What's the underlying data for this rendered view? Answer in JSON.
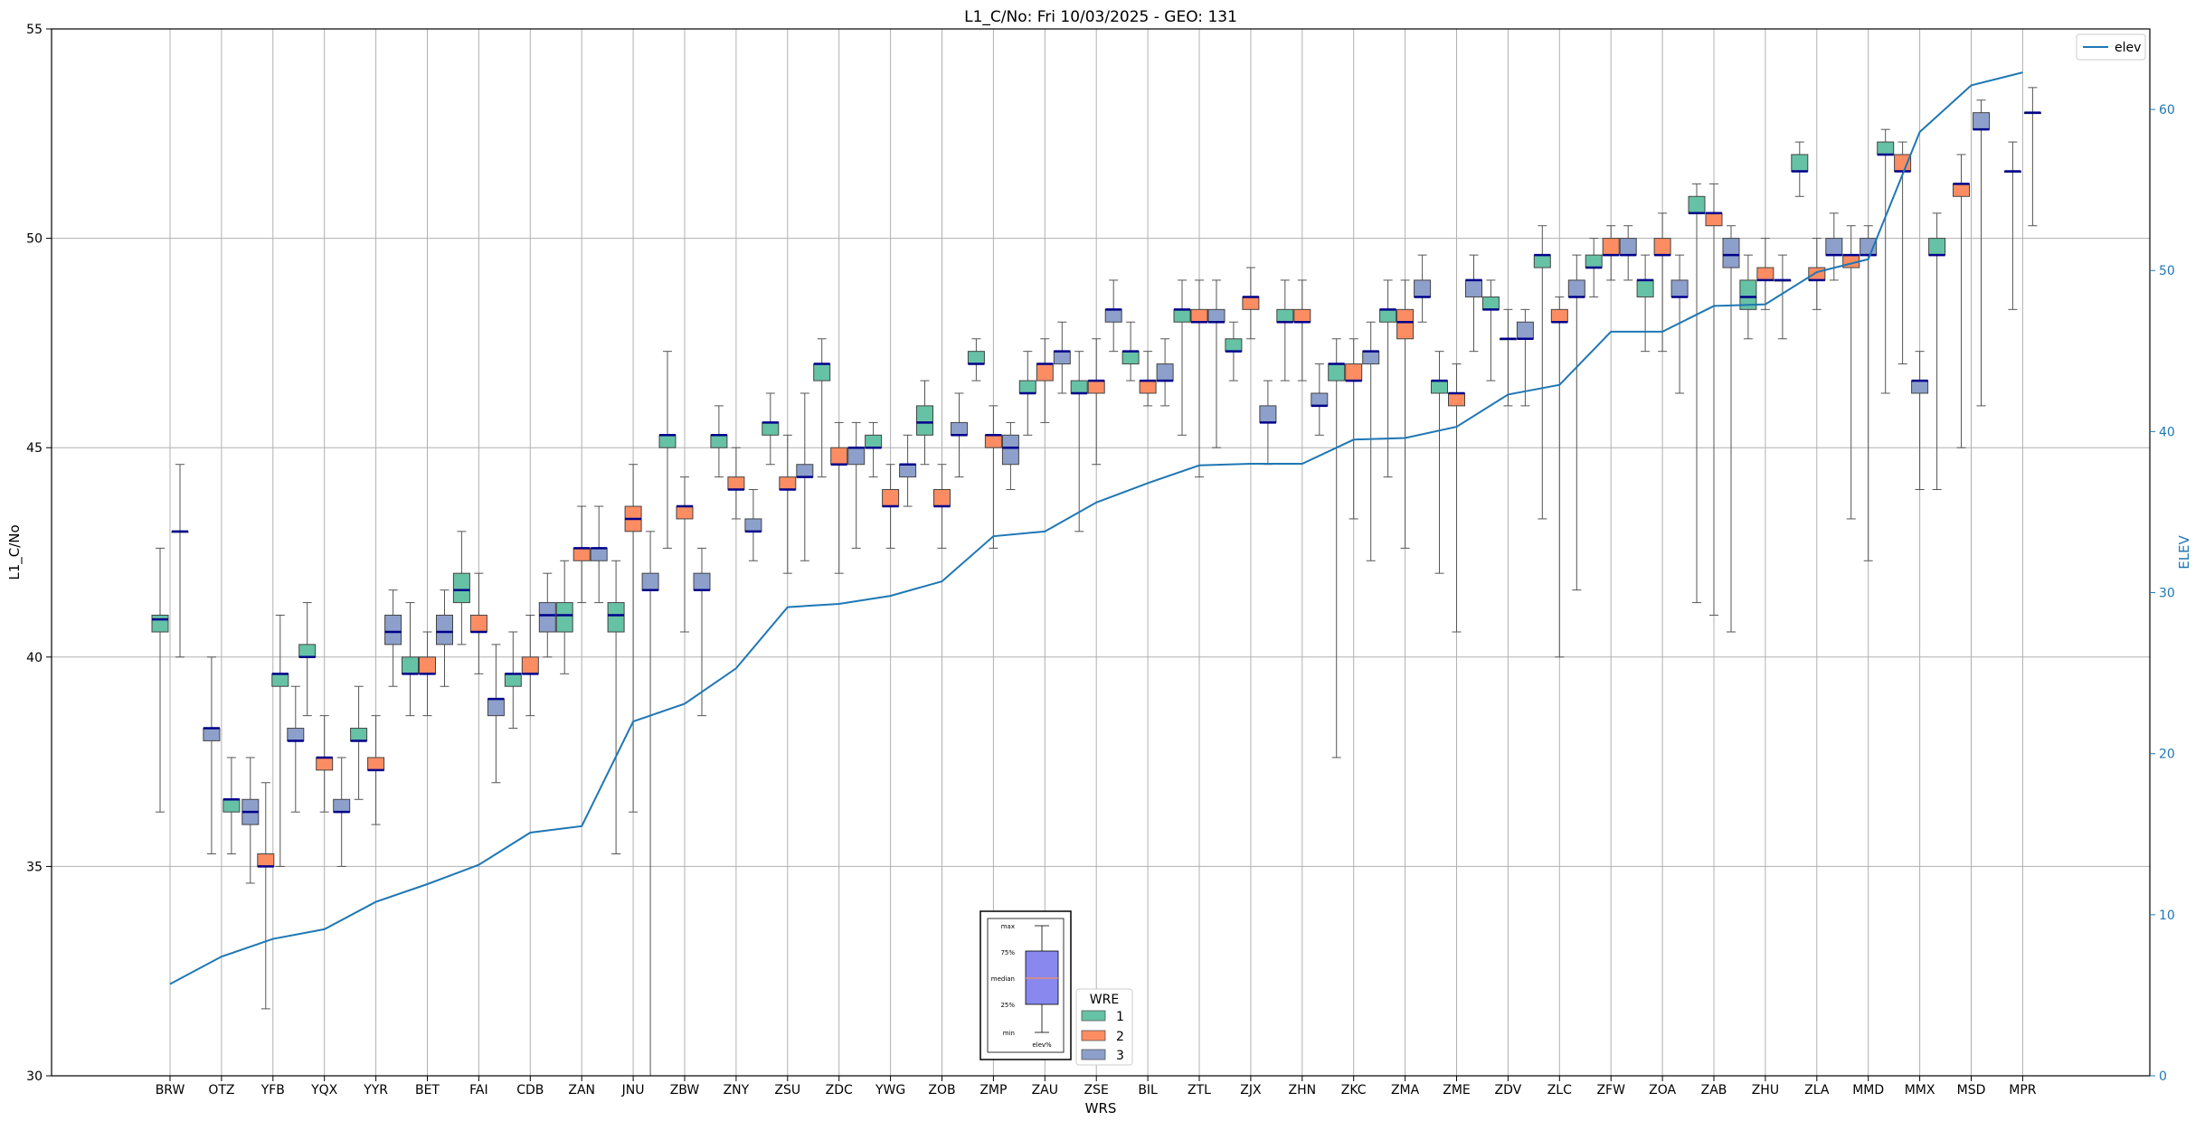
{
  "chart_data": {
    "type": "boxplot",
    "title": "L1_C/No: Fri 10/03/2025 - GEO: 131",
    "xlabel": "WRS",
    "ylabel": "L1_C/No",
    "y2label": "ELEV",
    "ylim": [
      30,
      55
    ],
    "y2lim": [
      0,
      65
    ],
    "yticks": [
      30,
      35,
      40,
      45,
      50,
      55
    ],
    "y2ticks": [
      0,
      10,
      20,
      30,
      40,
      50,
      60
    ],
    "grid": true,
    "categories": [
      "BRW",
      "OTZ",
      "YFB",
      "YQX",
      "YYR",
      "BET",
      "FAI",
      "CDB",
      "ZAN",
      "JNU",
      "ZBW",
      "ZNY",
      "ZSU",
      "ZDC",
      "YWG",
      "ZOB",
      "ZMP",
      "ZAU",
      "ZSE",
      "BIL",
      "ZTL",
      "ZJX",
      "ZHN",
      "ZKC",
      "ZMA",
      "ZME",
      "ZDV",
      "ZLC",
      "ZFW",
      "ZOA",
      "ZAB",
      "ZHU",
      "ZLA",
      "MMD",
      "MMX",
      "MSD",
      "MPR"
    ],
    "wre_colors": {
      "1": "#66c2a5",
      "2": "#fc8d62",
      "3": "#8da0cb"
    },
    "median_color": "#00008b",
    "elev_color": "#1f77b4",
    "boxes": [
      {
        "station": "BRW",
        "wre": 1,
        "min": 36.3,
        "q1": 40.6,
        "median": 40.9,
        "q3": 41.0,
        "max": 42.6
      },
      {
        "station": "BRW",
        "wre": 3,
        "min": 40.0,
        "q1": 43.0,
        "median": 43.0,
        "q3": 43.0,
        "max": 44.6
      },
      {
        "station": "OTZ",
        "wre": 3,
        "min": 35.3,
        "q1": 38.0,
        "median": 38.3,
        "q3": 38.3,
        "max": 40.0
      },
      {
        "station": "OTZ",
        "wre": 1,
        "min": 35.3,
        "q1": 36.3,
        "median": 36.6,
        "q3": 36.6,
        "max": 37.6
      },
      {
        "station": "YFB",
        "wre": 3,
        "min": 34.6,
        "q1": 36.0,
        "median": 36.3,
        "q3": 36.6,
        "max": 37.6
      },
      {
        "station": "YFB",
        "wre": 2,
        "min": 31.6,
        "q1": 35.0,
        "median": 35.0,
        "q3": 35.3,
        "max": 37.0
      },
      {
        "station": "YFB",
        "wre": 1,
        "min": 35.0,
        "q1": 39.3,
        "median": 39.6,
        "q3": 39.6,
        "max": 41.0
      },
      {
        "station": "YFB",
        "wre": 3,
        "min": 36.3,
        "q1": 38.0,
        "median": 38.0,
        "q3": 38.3,
        "max": 39.3
      },
      {
        "station": "YQX",
        "wre": 1,
        "min": 38.6,
        "q1": 40.0,
        "median": 40.0,
        "q3": 40.3,
        "max": 41.3
      },
      {
        "station": "YQX",
        "wre": 2,
        "min": 36.3,
        "q1": 37.3,
        "median": 37.6,
        "q3": 37.6,
        "max": 38.6
      },
      {
        "station": "YQX",
        "wre": 3,
        "min": 35.0,
        "q1": 36.3,
        "median": 36.3,
        "q3": 36.6,
        "max": 37.6
      },
      {
        "station": "YYR",
        "wre": 1,
        "min": 36.6,
        "q1": 38.0,
        "median": 38.0,
        "q3": 38.3,
        "max": 39.3
      },
      {
        "station": "YYR",
        "wre": 2,
        "min": 36.0,
        "q1": 37.3,
        "median": 37.3,
        "q3": 37.6,
        "max": 38.6
      },
      {
        "station": "YYR",
        "wre": 3,
        "min": 39.3,
        "q1": 40.3,
        "median": 40.6,
        "q3": 41.0,
        "max": 41.6
      },
      {
        "station": "BET",
        "wre": 1,
        "min": 38.6,
        "q1": 39.6,
        "median": 39.6,
        "q3": 40.0,
        "max": 41.3
      },
      {
        "station": "BET",
        "wre": 2,
        "min": 38.6,
        "q1": 39.6,
        "median": 39.6,
        "q3": 40.0,
        "max": 40.6
      },
      {
        "station": "BET",
        "wre": 3,
        "min": 39.3,
        "q1": 40.3,
        "median": 40.6,
        "q3": 41.0,
        "max": 41.6
      },
      {
        "station": "FAI",
        "wre": 1,
        "min": 40.3,
        "q1": 41.3,
        "median": 41.6,
        "q3": 42.0,
        "max": 43.0
      },
      {
        "station": "FAI",
        "wre": 2,
        "min": 39.6,
        "q1": 40.6,
        "median": 40.6,
        "q3": 41.0,
        "max": 42.0
      },
      {
        "station": "FAI",
        "wre": 3,
        "min": 37.0,
        "q1": 38.6,
        "median": 39.0,
        "q3": 39.0,
        "max": 40.3
      },
      {
        "station": "CDB",
        "wre": 1,
        "min": 38.3,
        "q1": 39.3,
        "median": 39.6,
        "q3": 39.6,
        "max": 40.6
      },
      {
        "station": "CDB",
        "wre": 2,
        "min": 38.6,
        "q1": 39.6,
        "median": 39.6,
        "q3": 40.0,
        "max": 41.0
      },
      {
        "station": "CDB",
        "wre": 3,
        "min": 40.0,
        "q1": 40.6,
        "median": 41.0,
        "q3": 41.3,
        "max": 42.0
      },
      {
        "station": "ZAN",
        "wre": 1,
        "min": 39.6,
        "q1": 40.6,
        "median": 41.0,
        "q3": 41.3,
        "max": 42.3
      },
      {
        "station": "ZAN",
        "wre": 2,
        "min": 41.3,
        "q1": 42.3,
        "median": 42.6,
        "q3": 42.6,
        "max": 43.6
      },
      {
        "station": "ZAN",
        "wre": 3,
        "min": 41.3,
        "q1": 42.3,
        "median": 42.6,
        "q3": 42.6,
        "max": 43.6
      },
      {
        "station": "JNU",
        "wre": 1,
        "min": 35.3,
        "q1": 40.6,
        "median": 41.0,
        "q3": 41.3,
        "max": 42.3
      },
      {
        "station": "JNU",
        "wre": 2,
        "min": 36.3,
        "q1": 43.0,
        "median": 43.3,
        "q3": 43.6,
        "max": 44.6
      },
      {
        "station": "JNU",
        "wre": 3,
        "min": 30.0,
        "q1": 41.6,
        "median": 41.6,
        "q3": 42.0,
        "max": 43.0
      },
      {
        "station": "ZBW",
        "wre": 1,
        "min": 42.6,
        "q1": 45.0,
        "median": 45.3,
        "q3": 45.3,
        "max": 47.3
      },
      {
        "station": "ZBW",
        "wre": 2,
        "min": 40.6,
        "q1": 43.3,
        "median": 43.6,
        "q3": 43.6,
        "max": 44.3
      },
      {
        "station": "ZBW",
        "wre": 3,
        "min": 38.6,
        "q1": 41.6,
        "median": 41.6,
        "q3": 42.0,
        "max": 42.6
      },
      {
        "station": "ZNY",
        "wre": 1,
        "min": 44.3,
        "q1": 45.0,
        "median": 45.3,
        "q3": 45.3,
        "max": 46.0
      },
      {
        "station": "ZNY",
        "wre": 2,
        "min": 43.3,
        "q1": 44.0,
        "median": 44.0,
        "q3": 44.3,
        "max": 45.0
      },
      {
        "station": "ZNY",
        "wre": 3,
        "min": 42.3,
        "q1": 43.0,
        "median": 43.0,
        "q3": 43.3,
        "max": 44.0
      },
      {
        "station": "ZSU",
        "wre": 1,
        "min": 44.6,
        "q1": 45.3,
        "median": 45.6,
        "q3": 45.6,
        "max": 46.3
      },
      {
        "station": "ZSU",
        "wre": 2,
        "min": 42.0,
        "q1": 44.0,
        "median": 44.0,
        "q3": 44.3,
        "max": 45.3
      },
      {
        "station": "ZSU",
        "wre": 3,
        "min": 42.3,
        "q1": 44.3,
        "median": 44.3,
        "q3": 44.6,
        "max": 46.3
      },
      {
        "station": "ZDC",
        "wre": 1,
        "min": 44.3,
        "q1": 46.6,
        "median": 47.0,
        "q3": 47.0,
        "max": 47.6
      },
      {
        "station": "ZDC",
        "wre": 2,
        "min": 42.0,
        "q1": 44.6,
        "median": 44.6,
        "q3": 45.0,
        "max": 45.6
      },
      {
        "station": "ZDC",
        "wre": 3,
        "min": 42.6,
        "q1": 44.6,
        "median": 45.0,
        "q3": 45.0,
        "max": 45.6
      },
      {
        "station": "YWG",
        "wre": 1,
        "min": 44.3,
        "q1": 45.0,
        "median": 45.0,
        "q3": 45.3,
        "max": 45.6
      },
      {
        "station": "YWG",
        "wre": 2,
        "min": 42.6,
        "q1": 43.6,
        "median": 43.6,
        "q3": 44.0,
        "max": 44.6
      },
      {
        "station": "YWG",
        "wre": 3,
        "min": 43.6,
        "q1": 44.3,
        "median": 44.6,
        "q3": 44.6,
        "max": 45.3
      },
      {
        "station": "ZOB",
        "wre": 1,
        "min": 44.6,
        "q1": 45.3,
        "median": 45.6,
        "q3": 46.0,
        "max": 46.6
      },
      {
        "station": "ZOB",
        "wre": 2,
        "min": 42.6,
        "q1": 43.6,
        "median": 43.6,
        "q3": 44.0,
        "max": 44.6
      },
      {
        "station": "ZOB",
        "wre": 3,
        "min": 44.3,
        "q1": 45.3,
        "median": 45.3,
        "q3": 45.6,
        "max": 46.3
      },
      {
        "station": "ZMP",
        "wre": 1,
        "min": 46.6,
        "q1": 47.0,
        "median": 47.0,
        "q3": 47.3,
        "max": 47.6
      },
      {
        "station": "ZMP",
        "wre": 2,
        "min": 42.6,
        "q1": 45.0,
        "median": 45.3,
        "q3": 45.3,
        "max": 46.0
      },
      {
        "station": "ZMP",
        "wre": 3,
        "min": 44.0,
        "q1": 44.6,
        "median": 45.0,
        "q3": 45.3,
        "max": 45.6
      },
      {
        "station": "ZAU",
        "wre": 1,
        "min": 45.3,
        "q1": 46.3,
        "median": 46.3,
        "q3": 46.6,
        "max": 47.3
      },
      {
        "station": "ZAU",
        "wre": 2,
        "min": 45.6,
        "q1": 46.6,
        "median": 47.0,
        "q3": 47.0,
        "max": 47.6
      },
      {
        "station": "ZAU",
        "wre": 3,
        "min": 46.3,
        "q1": 47.0,
        "median": 47.3,
        "q3": 47.3,
        "max": 48.0
      },
      {
        "station": "ZSE",
        "wre": 1,
        "min": 43.0,
        "q1": 46.3,
        "median": 46.3,
        "q3": 46.6,
        "max": 47.3
      },
      {
        "station": "ZSE",
        "wre": 2,
        "min": 44.6,
        "q1": 46.3,
        "median": 46.6,
        "q3": 46.6,
        "max": 47.6
      },
      {
        "station": "ZSE",
        "wre": 3,
        "min": 47.3,
        "q1": 48.0,
        "median": 48.3,
        "q3": 48.3,
        "max": 49.0
      },
      {
        "station": "BIL",
        "wre": 1,
        "min": 46.6,
        "q1": 47.0,
        "median": 47.3,
        "q3": 47.3,
        "max": 48.0
      },
      {
        "station": "BIL",
        "wre": 2,
        "min": 46.0,
        "q1": 46.3,
        "median": 46.6,
        "q3": 46.6,
        "max": 47.3
      },
      {
        "station": "BIL",
        "wre": 3,
        "min": 46.0,
        "q1": 46.6,
        "median": 46.6,
        "q3": 47.0,
        "max": 47.6
      },
      {
        "station": "ZTL",
        "wre": 1,
        "min": 45.3,
        "q1": 48.0,
        "median": 48.3,
        "q3": 48.3,
        "max": 49.0
      },
      {
        "station": "ZTL",
        "wre": 2,
        "min": 44.3,
        "q1": 48.0,
        "median": 48.0,
        "q3": 48.3,
        "max": 49.0
      },
      {
        "station": "ZTL",
        "wre": 3,
        "min": 45.0,
        "q1": 48.0,
        "median": 48.0,
        "q3": 48.3,
        "max": 49.0
      },
      {
        "station": "ZJX",
        "wre": 1,
        "min": 46.6,
        "q1": 47.3,
        "median": 47.3,
        "q3": 47.6,
        "max": 48.0
      },
      {
        "station": "ZJX",
        "wre": 2,
        "min": 47.6,
        "q1": 48.3,
        "median": 48.6,
        "q3": 48.6,
        "max": 49.3
      },
      {
        "station": "ZJX",
        "wre": 3,
        "min": 44.6,
        "q1": 45.6,
        "median": 45.6,
        "q3": 46.0,
        "max": 46.6
      },
      {
        "station": "ZHN",
        "wre": 1,
        "min": 46.6,
        "q1": 48.0,
        "median": 48.0,
        "q3": 48.3,
        "max": 49.0
      },
      {
        "station": "ZHN",
        "wre": 2,
        "min": 46.6,
        "q1": 48.0,
        "median": 48.0,
        "q3": 48.3,
        "max": 49.0
      },
      {
        "station": "ZHN",
        "wre": 3,
        "min": 45.3,
        "q1": 46.0,
        "median": 46.0,
        "q3": 46.3,
        "max": 47.0
      },
      {
        "station": "ZKC",
        "wre": 1,
        "min": 37.6,
        "q1": 46.6,
        "median": 47.0,
        "q3": 47.0,
        "max": 47.6
      },
      {
        "station": "ZKC",
        "wre": 2,
        "min": 43.3,
        "q1": 46.6,
        "median": 46.6,
        "q3": 47.0,
        "max": 47.6
      },
      {
        "station": "ZKC",
        "wre": 3,
        "min": 42.3,
        "q1": 47.0,
        "median": 47.3,
        "q3": 47.3,
        "max": 48.0
      },
      {
        "station": "ZMA",
        "wre": 1,
        "min": 44.3,
        "q1": 48.0,
        "median": 48.3,
        "q3": 48.3,
        "max": 49.0
      },
      {
        "station": "ZMA",
        "wre": 2,
        "min": 42.6,
        "q1": 47.6,
        "median": 48.0,
        "q3": 48.3,
        "max": 49.0
      },
      {
        "station": "ZMA",
        "wre": 3,
        "min": 48.0,
        "q1": 48.6,
        "median": 48.6,
        "q3": 49.0,
        "max": 49.6
      },
      {
        "station": "ZME",
        "wre": 1,
        "min": 42.0,
        "q1": 46.3,
        "median": 46.6,
        "q3": 46.6,
        "max": 47.3
      },
      {
        "station": "ZME",
        "wre": 2,
        "min": 40.6,
        "q1": 46.0,
        "median": 46.3,
        "q3": 46.3,
        "max": 47.0
      },
      {
        "station": "ZME",
        "wre": 3,
        "min": 47.3,
        "q1": 48.6,
        "median": 49.0,
        "q3": 49.0,
        "max": 49.6
      },
      {
        "station": "ZDV",
        "wre": 1,
        "min": 46.6,
        "q1": 48.3,
        "median": 48.3,
        "q3": 48.6,
        "max": 49.0
      },
      {
        "station": "ZDV",
        "wre": 2,
        "min": 46.0,
        "q1": 47.6,
        "median": 47.6,
        "q3": 47.6,
        "max": 48.3
      },
      {
        "station": "ZDV",
        "wre": 3,
        "min": 46.0,
        "q1": 47.6,
        "median": 47.6,
        "q3": 48.0,
        "max": 48.3
      },
      {
        "station": "ZLC",
        "wre": 1,
        "min": 43.3,
        "q1": 49.3,
        "median": 49.6,
        "q3": 49.6,
        "max": 50.3
      },
      {
        "station": "ZLC",
        "wre": 2,
        "min": 40.0,
        "q1": 48.0,
        "median": 48.0,
        "q3": 48.3,
        "max": 48.6
      },
      {
        "station": "ZLC",
        "wre": 3,
        "min": 41.6,
        "q1": 48.6,
        "median": 48.6,
        "q3": 49.0,
        "max": 49.6
      },
      {
        "station": "ZFW",
        "wre": 1,
        "min": 48.6,
        "q1": 49.3,
        "median": 49.3,
        "q3": 49.6,
        "max": 50.0
      },
      {
        "station": "ZFW",
        "wre": 2,
        "min": 49.0,
        "q1": 49.6,
        "median": 49.6,
        "q3": 50.0,
        "max": 50.3
      },
      {
        "station": "ZFW",
        "wre": 3,
        "min": 49.0,
        "q1": 49.6,
        "median": 49.6,
        "q3": 50.0,
        "max": 50.3
      },
      {
        "station": "ZOA",
        "wre": 1,
        "min": 47.3,
        "q1": 48.6,
        "median": 49.0,
        "q3": 49.0,
        "max": 49.6
      },
      {
        "station": "ZOA",
        "wre": 2,
        "min": 47.3,
        "q1": 49.6,
        "median": 49.6,
        "q3": 50.0,
        "max": 50.6
      },
      {
        "station": "ZOA",
        "wre": 3,
        "min": 46.3,
        "q1": 48.6,
        "median": 48.6,
        "q3": 49.0,
        "max": 49.6
      },
      {
        "station": "ZAB",
        "wre": 1,
        "min": 41.3,
        "q1": 50.6,
        "median": 50.6,
        "q3": 51.0,
        "max": 51.3
      },
      {
        "station": "ZAB",
        "wre": 2,
        "min": 41.0,
        "q1": 50.3,
        "median": 50.6,
        "q3": 50.6,
        "max": 51.3
      },
      {
        "station": "ZAB",
        "wre": 3,
        "min": 40.6,
        "q1": 49.3,
        "median": 49.6,
        "q3": 50.0,
        "max": 50.3
      },
      {
        "station": "ZHU",
        "wre": 1,
        "min": 47.6,
        "q1": 48.3,
        "median": 48.6,
        "q3": 49.0,
        "max": 49.6
      },
      {
        "station": "ZHU",
        "wre": 2,
        "min": 48.3,
        "q1": 49.0,
        "median": 49.0,
        "q3": 49.3,
        "max": 50.0
      },
      {
        "station": "ZHU",
        "wre": 3,
        "min": 47.6,
        "q1": 49.0,
        "median": 49.0,
        "q3": 49.0,
        "max": 49.6
      },
      {
        "station": "ZLA",
        "wre": 1,
        "min": 51.0,
        "q1": 51.6,
        "median": 51.6,
        "q3": 52.0,
        "max": 52.3
      },
      {
        "station": "ZLA",
        "wre": 2,
        "min": 48.3,
        "q1": 49.0,
        "median": 49.0,
        "q3": 49.3,
        "max": 50.0
      },
      {
        "station": "ZLA",
        "wre": 3,
        "min": 49.0,
        "q1": 49.6,
        "median": 49.6,
        "q3": 50.0,
        "max": 50.6
      },
      {
        "station": "MMD",
        "wre": 2,
        "min": 43.3,
        "q1": 49.3,
        "median": 49.6,
        "q3": 49.6,
        "max": 50.3
      },
      {
        "station": "MMD",
        "wre": 3,
        "min": 42.3,
        "q1": 49.6,
        "median": 49.6,
        "q3": 50.0,
        "max": 50.3
      },
      {
        "station": "MMD",
        "wre": 1,
        "min": 46.3,
        "q1": 52.0,
        "median": 52.0,
        "q3": 52.3,
        "max": 52.6
      },
      {
        "station": "MMX",
        "wre": 2,
        "min": 47.0,
        "q1": 51.6,
        "median": 51.6,
        "q3": 52.0,
        "max": 52.3
      },
      {
        "station": "MMX",
        "wre": 3,
        "min": 44.0,
        "q1": 46.3,
        "median": 46.6,
        "q3": 46.6,
        "max": 47.3
      },
      {
        "station": "MMX",
        "wre": 1,
        "min": 44.0,
        "q1": 49.6,
        "median": 49.6,
        "q3": 50.0,
        "max": 50.6
      },
      {
        "station": "MSD",
        "wre": 2,
        "min": 45.0,
        "q1": 51.0,
        "median": 51.3,
        "q3": 51.3,
        "max": 52.0
      },
      {
        "station": "MSD",
        "wre": 3,
        "min": 46.0,
        "q1": 52.6,
        "median": 52.6,
        "q3": 53.0,
        "max": 53.3
      },
      {
        "station": "MPR",
        "wre": 3,
        "min": 48.3,
        "q1": 51.6,
        "median": 51.6,
        "q3": 51.6,
        "max": 52.3
      },
      {
        "station": "MPR",
        "wre": 3,
        "min": 50.3,
        "q1": 53.0,
        "median": 53.0,
        "q3": 53.0,
        "max": 53.6
      }
    ],
    "elev": {
      "name": "elev",
      "values": [
        5.7,
        7.4,
        8.5,
        9.1,
        10.8,
        11.9,
        13.1,
        15.1,
        15.5,
        22.0,
        23.1,
        25.3,
        29.1,
        29.3,
        29.8,
        30.7,
        33.5,
        33.8,
        35.6,
        36.8,
        37.9,
        38.0,
        38.0,
        39.5,
        39.6,
        40.3,
        42.3,
        42.9,
        46.2,
        46.2,
        47.8,
        47.9,
        49.9,
        50.7,
        58.6,
        61.5,
        62.3
      ]
    },
    "legend": {
      "elev_label": "elev",
      "wre_title": "WRE",
      "wre_labels": [
        "1",
        "2",
        "3"
      ],
      "position": "top-right (elev), bottom-center (WRE)"
    },
    "box_key": {
      "labels": [
        "max",
        "75%",
        "median",
        "25%",
        "min"
      ],
      "caption": "elev%"
    }
  }
}
